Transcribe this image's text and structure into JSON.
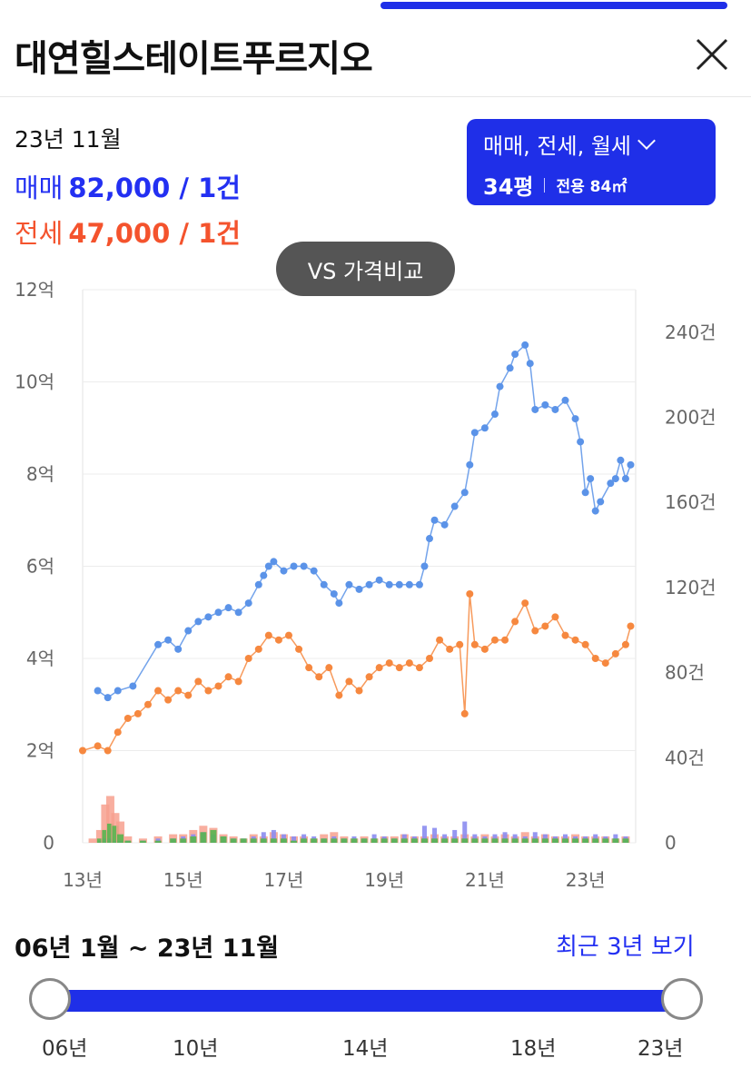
{
  "header": {
    "title": "대연힐스테이트푸르지오"
  },
  "summary": {
    "month": "23년 11월",
    "sale": {
      "label": "매매",
      "value": "82,000 / 1건"
    },
    "jeonse": {
      "label": "전세",
      "value": "47,000 / 1건"
    }
  },
  "filter": {
    "types": "매매, 전세, 월세",
    "pyeong": "34평",
    "area": "전용 84㎡"
  },
  "compare_button": "VS 가격비교",
  "colors": {
    "accent": "#1f2fe8",
    "sale_line": "#5b93e8",
    "jeonse_line": "#f6883f",
    "bar_sale": "#8b8cf0",
    "bar_jeonse": "#f7a08e",
    "bar_rent": "#56b54f"
  },
  "chart_data": {
    "type": "line",
    "x_ticks": [
      "13년",
      "15년",
      "17년",
      "19년",
      "21년",
      "23년"
    ],
    "y_left_ticks": [
      "0",
      "2억",
      "4억",
      "6억",
      "8억",
      "10억",
      "12억"
    ],
    "y_right_ticks": [
      "0",
      "40건",
      "80건",
      "120건",
      "160건",
      "200건",
      "240건"
    ],
    "y_left_range": [
      0,
      12
    ],
    "y_right_range": [
      0,
      260
    ],
    "grid": true,
    "series": [
      {
        "name": "매매",
        "color": "#5b93e8",
        "points": [
          [
            2013.3,
            3.3
          ],
          [
            2013.5,
            3.15
          ],
          [
            2013.7,
            3.3
          ],
          [
            2014.0,
            3.4
          ],
          [
            2014.5,
            4.3
          ],
          [
            2014.7,
            4.4
          ],
          [
            2014.9,
            4.2
          ],
          [
            2015.1,
            4.6
          ],
          [
            2015.3,
            4.8
          ],
          [
            2015.5,
            4.9
          ],
          [
            2015.7,
            5.0
          ],
          [
            2015.9,
            5.1
          ],
          [
            2016.1,
            5.0
          ],
          [
            2016.3,
            5.2
          ],
          [
            2016.5,
            5.6
          ],
          [
            2016.6,
            5.8
          ],
          [
            2016.7,
            6.0
          ],
          [
            2016.8,
            6.1
          ],
          [
            2017.0,
            5.9
          ],
          [
            2017.2,
            6.0
          ],
          [
            2017.4,
            6.0
          ],
          [
            2017.6,
            5.9
          ],
          [
            2017.8,
            5.6
          ],
          [
            2018.0,
            5.4
          ],
          [
            2018.1,
            5.2
          ],
          [
            2018.3,
            5.6
          ],
          [
            2018.5,
            5.5
          ],
          [
            2018.7,
            5.6
          ],
          [
            2018.9,
            5.7
          ],
          [
            2019.1,
            5.6
          ],
          [
            2019.3,
            5.6
          ],
          [
            2019.5,
            5.6
          ],
          [
            2019.7,
            5.6
          ],
          [
            2019.8,
            6.0
          ],
          [
            2019.9,
            6.6
          ],
          [
            2020.0,
            7.0
          ],
          [
            2020.2,
            6.9
          ],
          [
            2020.4,
            7.3
          ],
          [
            2020.6,
            7.6
          ],
          [
            2020.7,
            8.2
          ],
          [
            2020.8,
            8.9
          ],
          [
            2021.0,
            9.0
          ],
          [
            2021.2,
            9.3
          ],
          [
            2021.3,
            9.9
          ],
          [
            2021.5,
            10.3
          ],
          [
            2021.6,
            10.6
          ],
          [
            2021.8,
            10.8
          ],
          [
            2021.9,
            10.4
          ],
          [
            2022.0,
            9.4
          ],
          [
            2022.2,
            9.5
          ],
          [
            2022.4,
            9.4
          ],
          [
            2022.6,
            9.6
          ],
          [
            2022.8,
            9.2
          ],
          [
            2022.9,
            8.7
          ],
          [
            2023.0,
            7.6
          ],
          [
            2023.1,
            7.9
          ],
          [
            2023.2,
            7.2
          ],
          [
            2023.3,
            7.4
          ],
          [
            2023.5,
            7.8
          ],
          [
            2023.6,
            7.9
          ],
          [
            2023.7,
            8.3
          ],
          [
            2023.8,
            7.9
          ],
          [
            2023.9,
            8.2
          ]
        ]
      },
      {
        "name": "전세",
        "color": "#f6883f",
        "points": [
          [
            2013.0,
            2.0
          ],
          [
            2013.3,
            2.1
          ],
          [
            2013.5,
            2.0
          ],
          [
            2013.7,
            2.4
          ],
          [
            2013.9,
            2.7
          ],
          [
            2014.1,
            2.8
          ],
          [
            2014.3,
            3.0
          ],
          [
            2014.5,
            3.3
          ],
          [
            2014.7,
            3.1
          ],
          [
            2014.9,
            3.3
          ],
          [
            2015.1,
            3.2
          ],
          [
            2015.3,
            3.5
          ],
          [
            2015.5,
            3.3
          ],
          [
            2015.7,
            3.4
          ],
          [
            2015.9,
            3.6
          ],
          [
            2016.1,
            3.5
          ],
          [
            2016.3,
            4.0
          ],
          [
            2016.5,
            4.2
          ],
          [
            2016.7,
            4.5
          ],
          [
            2016.9,
            4.4
          ],
          [
            2017.1,
            4.5
          ],
          [
            2017.3,
            4.2
          ],
          [
            2017.5,
            3.8
          ],
          [
            2017.7,
            3.6
          ],
          [
            2017.9,
            3.8
          ],
          [
            2018.1,
            3.2
          ],
          [
            2018.3,
            3.5
          ],
          [
            2018.5,
            3.3
          ],
          [
            2018.7,
            3.6
          ],
          [
            2018.9,
            3.8
          ],
          [
            2019.1,
            3.9
          ],
          [
            2019.3,
            3.8
          ],
          [
            2019.5,
            3.9
          ],
          [
            2019.7,
            3.8
          ],
          [
            2019.9,
            4.0
          ],
          [
            2020.1,
            4.4
          ],
          [
            2020.3,
            4.2
          ],
          [
            2020.5,
            4.3
          ],
          [
            2020.6,
            2.8
          ],
          [
            2020.7,
            5.4
          ],
          [
            2020.8,
            4.3
          ],
          [
            2021.0,
            4.2
          ],
          [
            2021.2,
            4.4
          ],
          [
            2021.4,
            4.4
          ],
          [
            2021.6,
            4.8
          ],
          [
            2021.8,
            5.2
          ],
          [
            2022.0,
            4.6
          ],
          [
            2022.2,
            4.7
          ],
          [
            2022.4,
            4.9
          ],
          [
            2022.6,
            4.5
          ],
          [
            2022.8,
            4.4
          ],
          [
            2023.0,
            4.3
          ],
          [
            2023.2,
            4.0
          ],
          [
            2023.4,
            3.9
          ],
          [
            2023.6,
            4.1
          ],
          [
            2023.8,
            4.3
          ],
          [
            2023.9,
            4.7
          ]
        ]
      }
    ],
    "bars": {
      "x": [
        2013.2,
        2013.35,
        2013.45,
        2013.55,
        2013.65,
        2013.75,
        2013.9,
        2014.2,
        2014.5,
        2014.8,
        2015.0,
        2015.2,
        2015.4,
        2015.6,
        2015.8,
        2016.0,
        2016.2,
        2016.4,
        2016.6,
        2016.8,
        2017.0,
        2017.2,
        2017.4,
        2017.6,
        2017.8,
        2018.0,
        2018.2,
        2018.4,
        2018.6,
        2018.8,
        2019.0,
        2019.2,
        2019.4,
        2019.6,
        2019.8,
        2020.0,
        2020.2,
        2020.4,
        2020.6,
        2020.8,
        2021.0,
        2021.2,
        2021.4,
        2021.6,
        2021.8,
        2022.0,
        2022.2,
        2022.4,
        2022.6,
        2022.8,
        2023.0,
        2023.2,
        2023.4,
        2023.6,
        2023.8
      ],
      "sale": [
        0,
        1,
        2,
        2,
        1,
        1,
        1,
        1,
        2,
        2,
        3,
        4,
        5,
        4,
        3,
        2,
        2,
        3,
        5,
        6,
        4,
        3,
        4,
        3,
        2,
        3,
        2,
        3,
        2,
        4,
        3,
        2,
        4,
        3,
        8,
        7,
        4,
        6,
        10,
        4,
        3,
        4,
        5,
        4,
        3,
        5,
        4,
        3,
        4,
        3,
        3,
        4,
        3,
        4,
        3
      ],
      "jeonse": [
        2,
        6,
        18,
        22,
        14,
        10,
        3,
        2,
        3,
        4,
        4,
        6,
        8,
        7,
        4,
        3,
        2,
        4,
        3,
        5,
        4,
        3,
        3,
        2,
        4,
        5,
        3,
        2,
        3,
        2,
        3,
        3,
        4,
        3,
        3,
        4,
        3,
        3,
        4,
        3,
        4,
        3,
        4,
        3,
        5,
        3,
        4,
        3,
        3,
        4,
        3,
        3,
        3,
        2,
        3
      ],
      "rent": [
        0,
        2,
        6,
        9,
        8,
        4,
        1,
        1,
        1,
        2,
        2,
        3,
        5,
        6,
        3,
        2,
        2,
        2,
        2,
        2,
        2,
        1,
        2,
        2,
        2,
        2,
        2,
        2,
        2,
        2,
        2,
        2,
        2,
        2,
        2,
        2,
        2,
        2,
        2,
        2,
        2,
        2,
        2,
        2,
        2,
        2,
        2,
        2,
        2,
        2,
        2,
        2,
        2,
        2,
        2
      ]
    }
  },
  "range": {
    "text": "06년 1월 ~ 23년 11월",
    "recent_link": "최근 3년 보기",
    "labels": [
      "06년",
      "10년",
      "14년",
      "18년",
      "23년"
    ]
  }
}
